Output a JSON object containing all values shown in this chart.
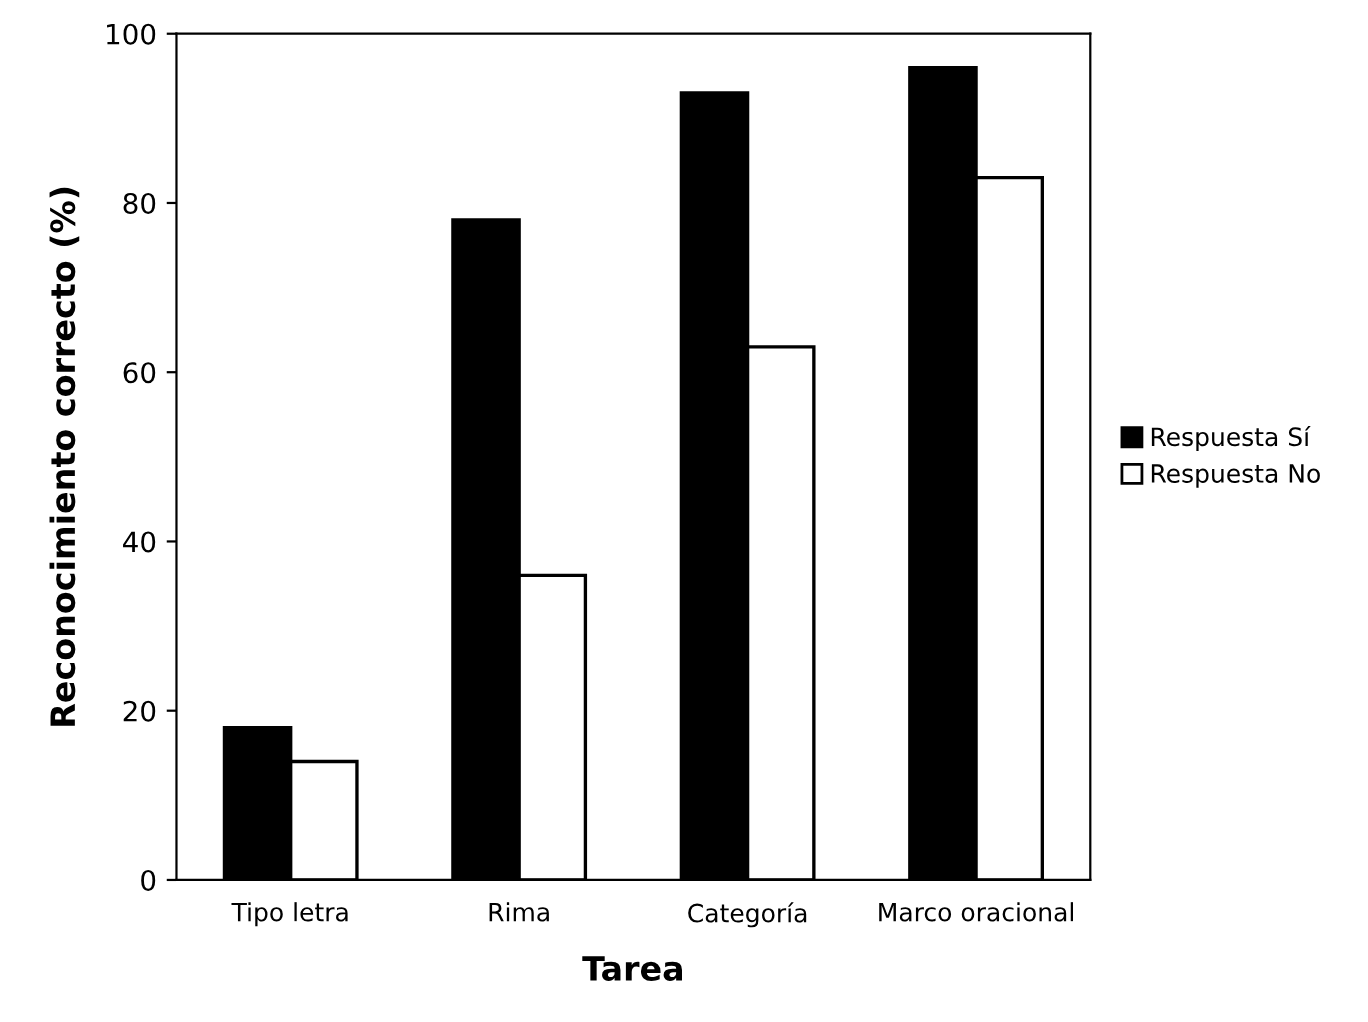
{
  "chart_data": {
    "type": "bar",
    "xlabel": "Tarea",
    "ylabel": "Reconocimiento correcto (%)",
    "categories": [
      "Tipo letra",
      "Rima",
      "Categoría",
      "Marco oracional"
    ],
    "series": [
      {
        "name": "Respuesta Sí",
        "color": "#000000",
        "values": [
          18,
          78,
          93,
          96
        ]
      },
      {
        "name": "Respuesta No",
        "color": "#ffffff",
        "values": [
          14,
          36,
          63,
          83
        ]
      }
    ],
    "ylim": [
      0,
      100
    ],
    "yticks": [
      0,
      20,
      40,
      60,
      80,
      100
    ],
    "grid": false,
    "legend": "right"
  }
}
